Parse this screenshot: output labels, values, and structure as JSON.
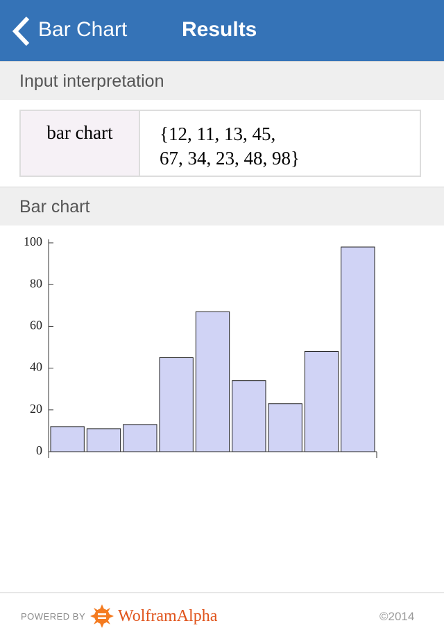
{
  "header": {
    "back_label": "Bar Chart",
    "title": "Results"
  },
  "sections": [
    {
      "title": "Input interpretation",
      "label": "bar chart",
      "value_lines": [
        "{12, 11, 13, 45,",
        "67, 34, 23, 48, 98}"
      ]
    },
    {
      "title": "Bar chart"
    }
  ],
  "chart_data": {
    "type": "bar",
    "categories": [
      null,
      null,
      null,
      null,
      null,
      null,
      null,
      null,
      null
    ],
    "values": [
      12,
      11,
      13,
      45,
      67,
      34,
      23,
      48,
      98
    ],
    "color": "#d0d3f5",
    "ylim": [
      0,
      100
    ],
    "yticks": [
      0,
      20,
      40,
      60,
      80,
      100
    ],
    "grid": false
  },
  "footer": {
    "powered_by": "POWERED BY",
    "brand": "WolframAlpha",
    "copyright": "©2014"
  }
}
